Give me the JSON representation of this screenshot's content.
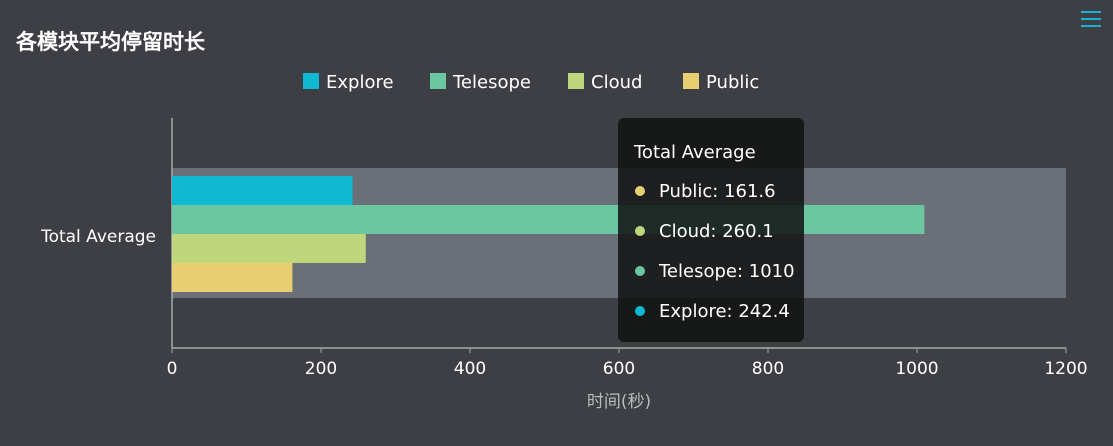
{
  "title": "各模块平均停留时长",
  "menu_icon": "hamburger-menu-icon",
  "chart_data": {
    "type": "bar",
    "orientation": "horizontal",
    "categories": [
      "Total Average"
    ],
    "series": [
      {
        "name": "Explore",
        "values": [
          242.4
        ],
        "color": "#10b9d3"
      },
      {
        "name": "Telesope",
        "values": [
          1010
        ],
        "color": "#6ac7a1"
      },
      {
        "name": "Cloud",
        "values": [
          260.1
        ],
        "color": "#bfd77a"
      },
      {
        "name": "Public",
        "values": [
          161.6
        ],
        "color": "#e8cf72"
      }
    ],
    "xlabel": "时间(秒)",
    "ylabel": "",
    "xlim": [
      0,
      1200
    ],
    "xticks": [
      "0",
      "200",
      "400",
      "600",
      "800",
      "1000",
      "1200"
    ],
    "grid": false,
    "legend_position": "top-center",
    "tooltip": {
      "title": "Total Average",
      "items": [
        {
          "label": "Public: 161.6",
          "color": "#e8cf72"
        },
        {
          "label": "Cloud: 260.1",
          "color": "#bfd77a"
        },
        {
          "label": "Telesope: 1010",
          "color": "#6ac7a1"
        },
        {
          "label": "Explore: 242.4",
          "color": "#10b9d3"
        }
      ]
    }
  }
}
